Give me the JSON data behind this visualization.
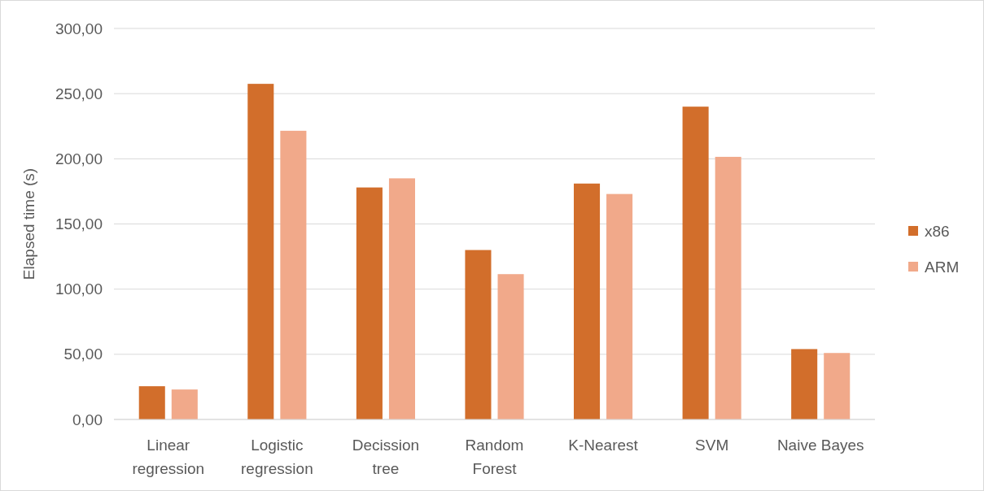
{
  "chart_data": {
    "type": "bar",
    "ylabel": "Elapsed time (s)",
    "categories": [
      "Linear regression",
      "Logistic regression",
      "Decission tree",
      "Random Forest",
      "K-Nearest",
      "SVM",
      "Naive Bayes"
    ],
    "series": [
      {
        "name": "x86",
        "color": "#d26e2b",
        "values": [
          25.5,
          257.5,
          178,
          130,
          181,
          240,
          54
        ]
      },
      {
        "name": "ARM",
        "color": "#f1a98a",
        "values": [
          23,
          221.5,
          185,
          111.5,
          173,
          201.5,
          51
        ]
      }
    ],
    "ylim": [
      0,
      300
    ],
    "yticks": [
      {
        "value": 0,
        "label": "0,00"
      },
      {
        "value": 50,
        "label": "50,00"
      },
      {
        "value": 100,
        "label": "100,00"
      },
      {
        "value": 150,
        "label": "150,00"
      },
      {
        "value": 200,
        "label": "200,00"
      },
      {
        "value": 250,
        "label": "250,00"
      },
      {
        "value": 300,
        "label": "300,00"
      }
    ],
    "grid": "y",
    "legend": "right"
  }
}
